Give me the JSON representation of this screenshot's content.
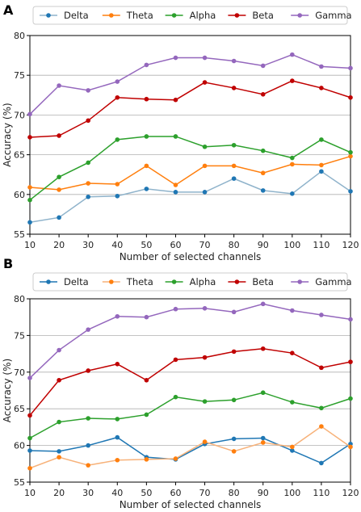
{
  "chart_data": [
    {
      "panel": "A",
      "type": "line",
      "xlabel": "Number of selected channels",
      "ylabel": "Accuracy (%)",
      "x": [
        10,
        20,
        30,
        40,
        50,
        60,
        70,
        80,
        90,
        100,
        110,
        120
      ],
      "xlim": [
        10,
        120
      ],
      "ylim": [
        55,
        80
      ],
      "xticks": [
        10,
        20,
        30,
        40,
        50,
        60,
        70,
        80,
        90,
        100,
        110,
        120
      ],
      "yticks": [
        55,
        60,
        65,
        70,
        75,
        80
      ],
      "grid": "horizontal",
      "legend": "top",
      "series": [
        {
          "name": "Delta",
          "color": "#1f77b4",
          "line_color": "#8fb3cb",
          "values": [
            56.5,
            57.1,
            59.7,
            59.8,
            60.7,
            60.3,
            60.3,
            62.0,
            60.5,
            60.1,
            62.9,
            60.4
          ]
        },
        {
          "name": "Theta",
          "color": "#ff7f0e",
          "line_color": "#ff7f0e",
          "values": [
            60.9,
            60.6,
            61.4,
            61.3,
            63.6,
            61.2,
            63.6,
            63.6,
            62.7,
            63.8,
            63.7,
            64.8
          ]
        },
        {
          "name": "Alpha",
          "color": "#2ca02c",
          "line_color": "#2ca02c",
          "values": [
            59.3,
            62.2,
            64.0,
            66.9,
            67.3,
            67.3,
            66.0,
            66.2,
            65.5,
            64.6,
            66.9,
            65.3
          ]
        },
        {
          "name": "Beta",
          "color": "#c00000",
          "line_color": "#c00000",
          "values": [
            67.2,
            67.4,
            69.3,
            72.2,
            72.0,
            71.9,
            74.1,
            73.4,
            72.6,
            74.3,
            73.4,
            72.2
          ]
        },
        {
          "name": "Gamma",
          "color": "#9467bd",
          "line_color": "#9467bd",
          "values": [
            70.1,
            73.7,
            73.1,
            74.2,
            76.3,
            77.2,
            77.2,
            76.8,
            76.2,
            77.6,
            76.1,
            75.9
          ]
        }
      ]
    },
    {
      "panel": "B",
      "type": "line",
      "xlabel": "Number of selected channels",
      "ylabel": "Accuracy (%)",
      "x": [
        10,
        20,
        30,
        40,
        50,
        60,
        70,
        80,
        90,
        100,
        110,
        120
      ],
      "xlim": [
        10,
        120
      ],
      "ylim": [
        55,
        80
      ],
      "xticks": [
        10,
        20,
        30,
        40,
        50,
        60,
        70,
        80,
        90,
        100,
        110,
        120
      ],
      "yticks": [
        55,
        60,
        65,
        70,
        75,
        80
      ],
      "grid": "horizontal",
      "legend": "top",
      "series": [
        {
          "name": "Delta",
          "color": "#1f77b4",
          "line_color": "#1f77b4",
          "values": [
            59.3,
            59.2,
            60.0,
            61.1,
            58.4,
            58.1,
            60.2,
            60.9,
            61.0,
            59.3,
            57.6,
            60.2
          ]
        },
        {
          "name": "Theta",
          "color": "#ff7f0e",
          "line_color": "#f7b27a",
          "values": [
            56.9,
            58.4,
            57.3,
            58.0,
            58.1,
            58.2,
            60.5,
            59.2,
            60.4,
            59.8,
            62.6,
            59.8
          ]
        },
        {
          "name": "Alpha",
          "color": "#2ca02c",
          "line_color": "#2ca02c",
          "values": [
            61.0,
            63.2,
            63.7,
            63.6,
            64.2,
            66.6,
            66.0,
            66.2,
            67.2,
            65.9,
            65.1,
            66.4
          ]
        },
        {
          "name": "Beta",
          "color": "#c00000",
          "line_color": "#c00000",
          "values": [
            64.1,
            68.9,
            70.2,
            71.1,
            68.9,
            71.7,
            72.0,
            72.8,
            73.2,
            72.6,
            70.6,
            71.4
          ]
        },
        {
          "name": "Gamma",
          "color": "#9467bd",
          "line_color": "#9467bd",
          "values": [
            69.2,
            73.0,
            75.8,
            77.6,
            77.5,
            78.6,
            78.7,
            78.2,
            79.3,
            78.4,
            77.8,
            77.2
          ]
        }
      ]
    }
  ]
}
